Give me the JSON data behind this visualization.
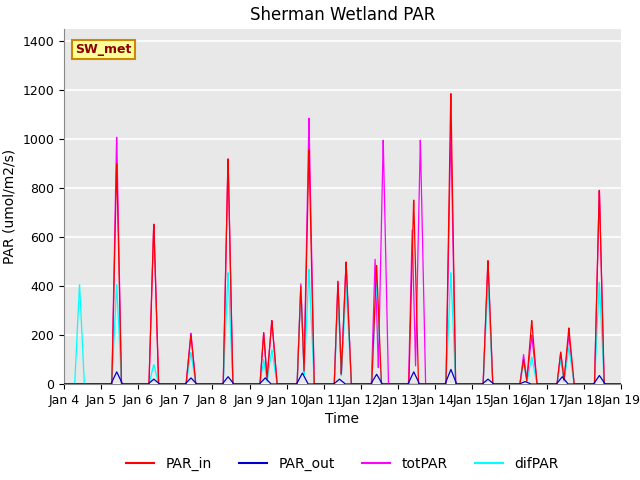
{
  "title": "Sherman Wetland PAR",
  "ylabel": "PAR (umol/m2/s)",
  "xlabel": "Time",
  "ylim": [
    0,
    1450
  ],
  "yticks": [
    0,
    200,
    400,
    600,
    800,
    1000,
    1200,
    1400
  ],
  "xtick_labels": [
    "Jan 4",
    "Jan 5",
    "Jan 6",
    "Jan 7",
    "Jan 8",
    "Jan 9",
    "Jan 10",
    "Jan 11",
    "Jan 12",
    "Jan 13",
    "Jan 14",
    "Jan 15",
    "Jan 16",
    "Jan 17",
    "Jan 18",
    "Jan 19"
  ],
  "color_PAR_in": "#ff0000",
  "color_PAR_out": "#0000cc",
  "color_totPAR": "#ff00ff",
  "color_difPAR": "#00ffff",
  "annotation_text": "SW_met",
  "annotation_bg": "#ffff99",
  "annotation_border": "#cc8800",
  "background_color": "#e8e8e8",
  "grid_color": "#ffffff",
  "title_fontsize": 12,
  "axis_fontsize": 10,
  "tick_fontsize": 9,
  "legend_fontsize": 10
}
